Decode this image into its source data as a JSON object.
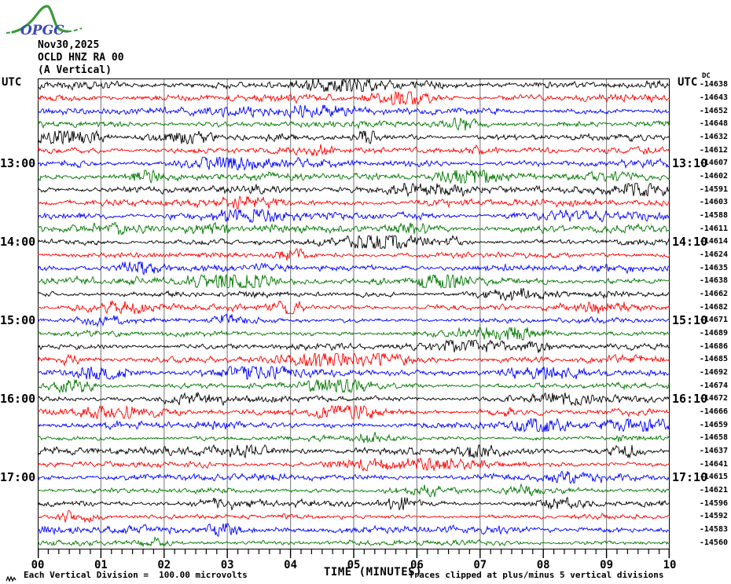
{
  "logo": {
    "text": "OPGC",
    "curve_color": "#3a9a3a",
    "text_color": "#3a4ab8"
  },
  "header": {
    "date": "Nov30,2025",
    "station": "OCLD HNZ RA 00",
    "component": "(A Vertical)"
  },
  "axis": {
    "left_header": "UTC",
    "right_header": "UTC",
    "dc_header": "DC",
    "x_tick_labels": [
      "00",
      "01",
      "02",
      "03",
      "04",
      "05",
      "06",
      "07",
      "08",
      "09",
      "10"
    ],
    "x_title": "TIME (MINUTES)"
  },
  "footer": {
    "left_note": "Each Vertical Division =  100.00 microvolts",
    "right_note": "Traces clipped at plus/minus 5 vertical divisions"
  },
  "colors": {
    "trace_cycle": [
      "#000000",
      "#ff0000",
      "#0000ff",
      "#007700"
    ],
    "grid": "#8a8a8a",
    "border": "#000000"
  },
  "traces": [
    {
      "dc": "-14638",
      "left": "",
      "right": ""
    },
    {
      "dc": "-14643",
      "left": "",
      "right": ""
    },
    {
      "dc": "-14652",
      "left": "",
      "right": ""
    },
    {
      "dc": "-14648",
      "left": "",
      "right": ""
    },
    {
      "dc": "-14632",
      "left": "",
      "right": ""
    },
    {
      "dc": "-14612",
      "left": "",
      "right": ""
    },
    {
      "dc": "-14607",
      "left": "13:00",
      "right": "13:10"
    },
    {
      "dc": "-14602",
      "left": "",
      "right": ""
    },
    {
      "dc": "-14591",
      "left": "",
      "right": ""
    },
    {
      "dc": "-14603",
      "left": "",
      "right": ""
    },
    {
      "dc": "-14588",
      "left": "",
      "right": ""
    },
    {
      "dc": "-14611",
      "left": "",
      "right": ""
    },
    {
      "dc": "-14614",
      "left": "14:00",
      "right": "14:10"
    },
    {
      "dc": "-14624",
      "left": "",
      "right": ""
    },
    {
      "dc": "-14635",
      "left": "",
      "right": ""
    },
    {
      "dc": "-14638",
      "left": "",
      "right": ""
    },
    {
      "dc": "-14662",
      "left": "",
      "right": ""
    },
    {
      "dc": "-14682",
      "left": "",
      "right": ""
    },
    {
      "dc": "-14671",
      "left": "15:00",
      "right": "15:10"
    },
    {
      "dc": "-14689",
      "left": "",
      "right": ""
    },
    {
      "dc": "-14686",
      "left": "",
      "right": ""
    },
    {
      "dc": "-14685",
      "left": "",
      "right": ""
    },
    {
      "dc": "-14692",
      "left": "",
      "right": ""
    },
    {
      "dc": "-14674",
      "left": "",
      "right": ""
    },
    {
      "dc": "-14672",
      "left": "16:00",
      "right": "16:10"
    },
    {
      "dc": "-14666",
      "left": "",
      "right": ""
    },
    {
      "dc": "-14659",
      "left": "",
      "right": ""
    },
    {
      "dc": "-14658",
      "left": "",
      "right": ""
    },
    {
      "dc": "-14637",
      "left": "",
      "right": ""
    },
    {
      "dc": "-14641",
      "left": "",
      "right": ""
    },
    {
      "dc": "-14615",
      "left": "17:00",
      "right": "17:10"
    },
    {
      "dc": "-14621",
      "left": "",
      "right": ""
    },
    {
      "dc": "-14596",
      "left": "",
      "right": ""
    },
    {
      "dc": "-14592",
      "left": "",
      "right": ""
    },
    {
      "dc": "-14583",
      "left": "",
      "right": ""
    },
    {
      "dc": "-14560",
      "left": "",
      "right": ""
    }
  ],
  "chart_data": {
    "type": "line",
    "subtype": "seismogram-helicorder",
    "title": "OCLD HNZ RA 00 (A Vertical) Nov30,2025",
    "xlabel": "TIME (MINUTES)",
    "x_range": [
      0,
      10
    ],
    "x_tick_labels": [
      "00",
      "01",
      "02",
      "03",
      "04",
      "05",
      "06",
      "07",
      "08",
      "09",
      "10"
    ],
    "minutes_per_line": 10,
    "lines_per_hour": 6,
    "left_time_labels": [
      "13:00",
      "14:00",
      "15:00",
      "16:00",
      "17:00"
    ],
    "right_time_labels": [
      "13:10",
      "14:10",
      "15:10",
      "16:10",
      "17:10"
    ],
    "trace_color_cycle": [
      "black",
      "red",
      "blue",
      "green"
    ],
    "dc_offsets": [
      -14638,
      -14643,
      -14652,
      -14648,
      -14632,
      -14612,
      -14607,
      -14602,
      -14591,
      -14603,
      -14588,
      -14611,
      -14614,
      -14624,
      -14635,
      -14638,
      -14662,
      -14682,
      -14671,
      -14689,
      -14686,
      -14685,
      -14692,
      -14674,
      -14672,
      -14666,
      -14659,
      -14658,
      -14637,
      -14641,
      -14615,
      -14621,
      -14596,
      -14592,
      -14583,
      -14560
    ],
    "scale_note": "Each Vertical Division =  100.00 microvolts",
    "clip_note": "Traces clipped at plus/minus 5 vertical divisions",
    "grid": "vertical lines every 1 minute"
  }
}
